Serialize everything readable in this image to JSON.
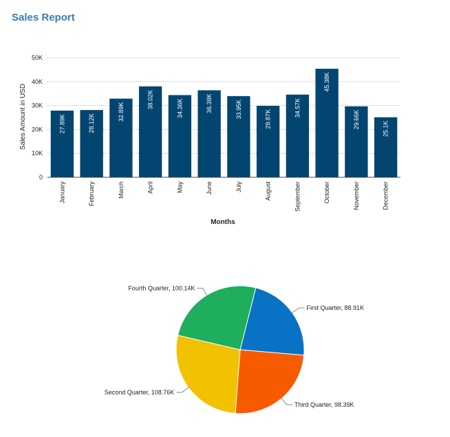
{
  "page": {
    "title": "Sales Report"
  },
  "chart_data": [
    {
      "type": "bar",
      "title": "",
      "xlabel": "Months",
      "ylabel": "Sales Amount in USD",
      "ylim": [
        0,
        50000
      ],
      "yticks": [
        0,
        10000,
        20000,
        30000,
        40000,
        50000
      ],
      "ytick_labels": [
        "0",
        "10K",
        "20K",
        "30K",
        "40K",
        "50K"
      ],
      "grid": true,
      "color": "#024570",
      "categories": [
        "January",
        "February",
        "March",
        "April",
        "May",
        "June",
        "July",
        "August",
        "September",
        "October",
        "November",
        "December"
      ],
      "values": [
        27890,
        28120,
        32890,
        38020,
        34360,
        36380,
        33950,
        29870,
        34570,
        45380,
        29660,
        25100
      ],
      "data_labels": [
        "27.89K",
        "28.12K",
        "32.89K",
        "38.02K",
        "34.36K",
        "36.38K",
        "33.95K",
        "29.87K",
        "34.57K",
        "45.38K",
        "29.66K",
        "25.1K"
      ]
    },
    {
      "type": "pie",
      "title": "",
      "slices": [
        {
          "label": "First Quarter, 88.91K",
          "value": 88910,
          "color": "#0872c4"
        },
        {
          "label": "Third Quarter, 98.39K",
          "value": 98390,
          "color": "#f85a00"
        },
        {
          "label": "Second Quarter, 108.76K",
          "value": 108760,
          "color": "#f2c200"
        },
        {
          "label": "Fourth Quarter, 100.14K",
          "value": 100140,
          "color": "#1eae5c"
        }
      ]
    }
  ]
}
